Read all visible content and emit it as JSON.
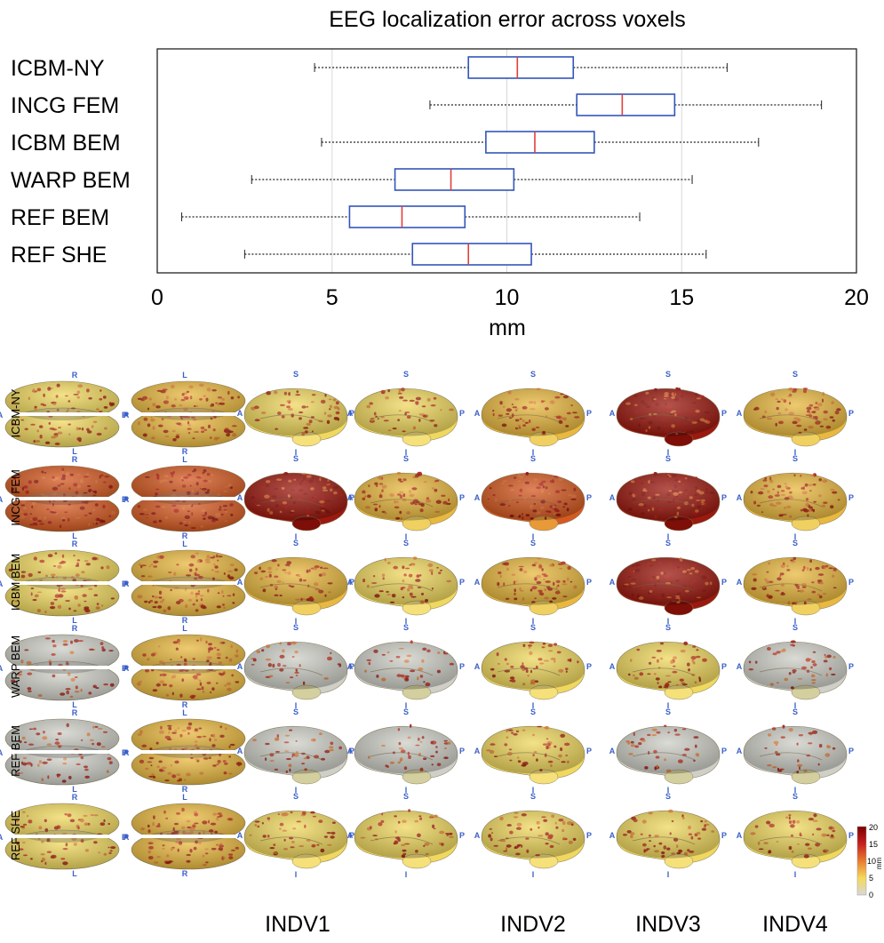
{
  "chart_data": [
    {
      "type": "box",
      "title": "EEG localization error across voxels",
      "xlabel": "mm",
      "xlim": [
        0,
        20
      ],
      "xticks": [
        "0",
        "5",
        "10",
        "15",
        "20"
      ],
      "xtick_values": [
        0,
        5,
        10,
        15,
        20
      ],
      "vertical_grid": true,
      "box_color": "#3355bb",
      "median_color": "#e0403a",
      "categories": [
        "ICBM-NY",
        "INCG FEM",
        "ICBM BEM",
        "WARP BEM",
        "REF BEM",
        "REF SHE"
      ],
      "boxes": [
        {
          "label": "ICBM-NY",
          "min": 4.5,
          "q1": 8.9,
          "median": 10.3,
          "q3": 11.9,
          "max": 16.3
        },
        {
          "label": "INCG FEM",
          "min": 7.8,
          "q1": 12.0,
          "median": 13.3,
          "q3": 14.8,
          "max": 19.0
        },
        {
          "label": "ICBM BEM",
          "min": 4.7,
          "q1": 9.4,
          "median": 10.8,
          "q3": 12.5,
          "max": 17.2
        },
        {
          "label": "WARP BEM",
          "min": 2.7,
          "q1": 6.8,
          "median": 8.4,
          "q3": 10.2,
          "max": 15.3
        },
        {
          "label": "REF BEM",
          "min": 0.7,
          "q1": 5.5,
          "median": 7.0,
          "q3": 8.8,
          "max": 13.8
        },
        {
          "label": "REF SHE",
          "min": 2.5,
          "q1": 7.3,
          "median": 8.9,
          "q3": 10.7,
          "max": 15.7
        }
      ]
    },
    {
      "type": "heatmap",
      "rows": [
        "ICBM-NY",
        "INCG FEM",
        "ICBM BEM",
        "WARP BEM",
        "REF BEM",
        "REF SHE"
      ],
      "columns": [
        "INDV1",
        "INDV2",
        "INDV3",
        "INDV4"
      ],
      "colorbar": {
        "ticks": [
          "20",
          "15",
          "10",
          "5",
          "0"
        ],
        "unit": "mm",
        "colors": [
          "#7a0000",
          "#c62020",
          "#e87a30",
          "#f5d95a",
          "#d8d8d8"
        ]
      },
      "error_level": [
        [
          0.35,
          0.55,
          0.35,
          0.3,
          0.45,
          0.85,
          0.45
        ],
        [
          0.7,
          0.65,
          0.85,
          0.6,
          0.7,
          0.95,
          0.6
        ],
        [
          0.4,
          0.55,
          0.45,
          0.35,
          0.55,
          0.85,
          0.5
        ],
        [
          0.15,
          0.5,
          0.15,
          0.15,
          0.35,
          0.35,
          0.2
        ],
        [
          0.2,
          0.5,
          0.2,
          0.2,
          0.3,
          0.2,
          0.15
        ],
        [
          0.25,
          0.5,
          0.3,
          0.3,
          0.4,
          0.35,
          0.25
        ]
      ],
      "orientation_letters": {
        "top_view": [
          "R",
          "A",
          "L"
        ],
        "bottom_view": [
          "L",
          "P",
          "R"
        ],
        "lateral_view": [
          "S",
          "A",
          "P",
          "I"
        ]
      }
    }
  ]
}
